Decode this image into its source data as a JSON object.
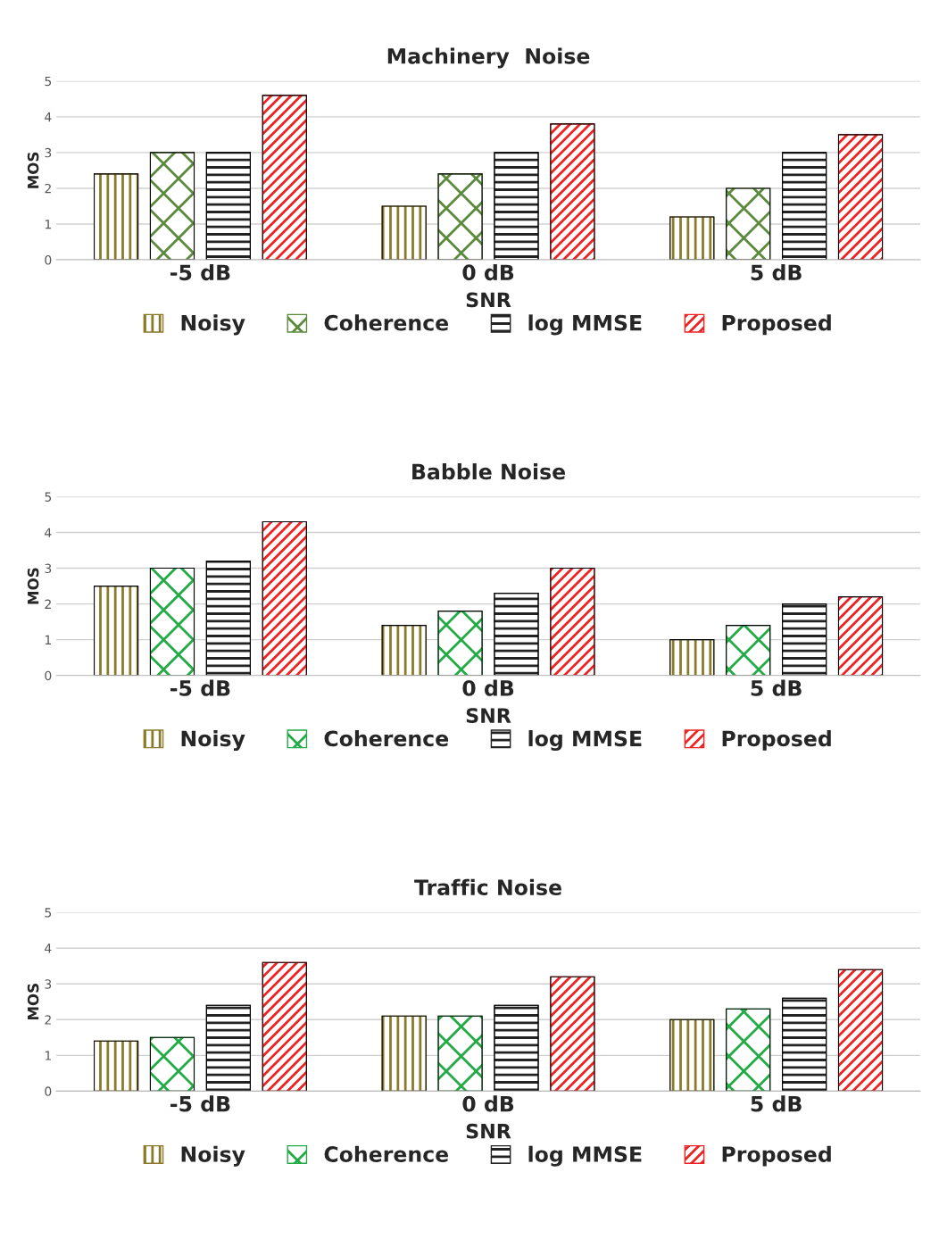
{
  "chart_data": [
    {
      "type": "bar",
      "title": "Machinery  Noise",
      "xlabel": "SNR",
      "ylabel": "MOS",
      "categories": [
        "-5 dB",
        "0 dB",
        "5 dB"
      ],
      "ylim": [
        0,
        5
      ],
      "yticks": [
        0,
        1,
        2,
        3,
        4,
        5
      ],
      "grid": "y",
      "legend": "bottom",
      "series": [
        {
          "name": "Noisy",
          "color": "#8b7a2a",
          "values": [
            2.4,
            1.5,
            1.2
          ]
        },
        {
          "name": "Coherence",
          "color": "#5b8a3c",
          "values": [
            3.0,
            2.4,
            2.0
          ]
        },
        {
          "name": "log MMSE",
          "color": "#222222",
          "values": [
            3.0,
            3.0,
            3.0
          ]
        },
        {
          "name": "Proposed",
          "color": "#ee2222",
          "values": [
            4.6,
            3.8,
            3.5
          ]
        }
      ]
    },
    {
      "type": "bar",
      "title": "Babble Noise",
      "xlabel": "SNR",
      "ylabel": "MOS",
      "categories": [
        "-5 dB",
        "0 dB",
        "5 dB"
      ],
      "ylim": [
        0,
        5
      ],
      "yticks": [
        0,
        1,
        2,
        3,
        4,
        5
      ],
      "grid": "y",
      "legend": "bottom",
      "series": [
        {
          "name": "Noisy",
          "color": "#8b7a2a",
          "values": [
            2.5,
            1.4,
            1.0
          ]
        },
        {
          "name": "Coherence",
          "color": "#22aa44",
          "values": [
            3.0,
            1.8,
            1.4
          ]
        },
        {
          "name": "log MMSE",
          "color": "#222222",
          "values": [
            3.2,
            2.3,
            2.0
          ]
        },
        {
          "name": "Proposed",
          "color": "#ee2222",
          "values": [
            4.3,
            3.0,
            2.2
          ]
        }
      ]
    },
    {
      "type": "bar",
      "title": "Traffic Noise",
      "xlabel": "SNR",
      "ylabel": "MOS",
      "categories": [
        "-5 dB",
        "0 dB",
        "5 dB"
      ],
      "ylim": [
        0,
        5
      ],
      "yticks": [
        0,
        1,
        2,
        3,
        4,
        5
      ],
      "grid": "y",
      "legend": "bottom",
      "series": [
        {
          "name": "Noisy",
          "color": "#8b7a2a",
          "values": [
            1.4,
            2.1,
            2.0
          ]
        },
        {
          "name": "Coherence",
          "color": "#22aa44",
          "values": [
            1.5,
            2.1,
            2.3
          ]
        },
        {
          "name": "log MMSE",
          "color": "#222222",
          "values": [
            2.4,
            2.4,
            2.6
          ]
        },
        {
          "name": "Proposed",
          "color": "#ee2222",
          "values": [
            3.6,
            3.2,
            3.4
          ]
        }
      ]
    }
  ]
}
